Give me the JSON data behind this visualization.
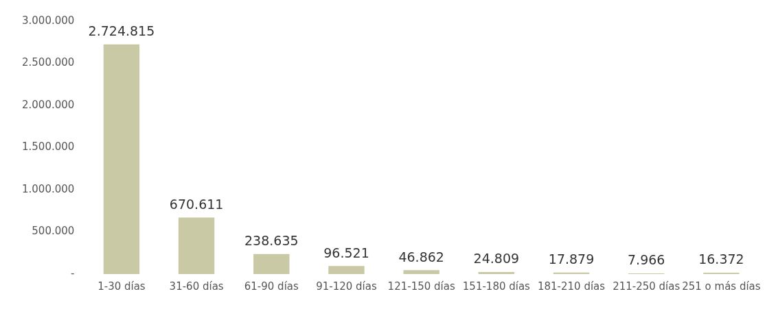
{
  "chart_data": {
    "type": "bar",
    "categories": [
      "1-30 días",
      "31-60 días",
      "61-90 días",
      "91-120 días",
      "121-150 días",
      "151-180 días",
      "181-210 días",
      "211-250 días",
      "251 o más días"
    ],
    "values": [
      2724815,
      670611,
      238635,
      96521,
      46862,
      24809,
      17879,
      7966,
      16372
    ],
    "value_labels": [
      "2.724.815",
      "670.611",
      "238.635",
      "96.521",
      "46.862",
      "24.809",
      "17.879",
      "7.966",
      "16.372"
    ],
    "color": "#c9c9a6",
    "ylim": [
      0,
      3000000
    ],
    "yticks": [
      {
        "value": 0,
        "label": "-"
      },
      {
        "value": 500000,
        "label": "500.000"
      },
      {
        "value": 1000000,
        "label": "1.000.000"
      },
      {
        "value": 1500000,
        "label": "1.500.000"
      },
      {
        "value": 2000000,
        "label": "2.000.000"
      },
      {
        "value": 2500000,
        "label": "2.500.000"
      },
      {
        "value": 3000000,
        "label": "3.000.000"
      }
    ],
    "grid": false,
    "legend": false
  }
}
